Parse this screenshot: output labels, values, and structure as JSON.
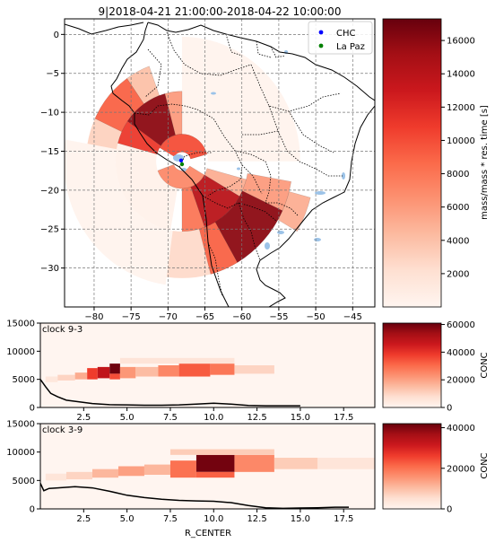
{
  "chart_data": [
    {
      "type": "heatmap",
      "title": "9|2018-04-21 21:00:00-2018-04-22 10:00:00",
      "xlim": [
        -84,
        -42
      ],
      "ylim": [
        -35,
        2
      ],
      "x_ticks": [
        -80,
        -75,
        -70,
        -65,
        -60,
        -55,
        -50,
        -45
      ],
      "y_ticks": [
        0,
        -5,
        -10,
        -15,
        -20,
        -25,
        -30
      ],
      "grid": true,
      "legend": {
        "placement": "top-right",
        "entries": [
          {
            "label": "CHC",
            "color": "#0000ff"
          },
          {
            "label": "La Paz",
            "color": "#008000"
          }
        ]
      },
      "stations": [
        {
          "name": "CHC",
          "lon": -68.1,
          "lat": -16.3
        },
        {
          "name": "La Paz",
          "lon": -68.1,
          "lat": -16.5
        }
      ],
      "colorbar": {
        "label": "mass/mass * res. time [s]",
        "min": 0,
        "max": 17300,
        "ticks": [
          2000,
          4000,
          6000,
          8000,
          10000,
          12000,
          14000,
          16000
        ]
      },
      "sectors": [
        {
          "r0": 1.2,
          "r1": 3.5,
          "a0": 15,
          "a1": 150,
          "v": 10000
        },
        {
          "r0": 1.2,
          "r1": 3.5,
          "a0": 200,
          "a1": 330,
          "v": 7000
        },
        {
          "r0": 3.5,
          "r1": 9,
          "a0": 105,
          "a1": 145,
          "v": 16000
        },
        {
          "r0": 3.5,
          "r1": 9,
          "a0": 145,
          "a1": 165,
          "v": 11000
        },
        {
          "r0": 3.5,
          "r1": 9,
          "a0": 90,
          "a1": 105,
          "v": 6000
        },
        {
          "r0": 9,
          "r1": 13,
          "a0": 125,
          "a1": 155,
          "v": 9000
        },
        {
          "r0": 9,
          "r1": 13,
          "a0": 110,
          "a1": 125,
          "v": 4000
        },
        {
          "r0": 9,
          "r1": 13,
          "a0": 155,
          "a1": 170,
          "v": 3000
        },
        {
          "r0": 3.5,
          "r1": 9,
          "a0": 290,
          "a1": 330,
          "v": 14000
        },
        {
          "r0": 3.5,
          "r1": 9,
          "a0": 270,
          "a1": 290,
          "v": 8000
        },
        {
          "r0": 3.5,
          "r1": 9,
          "a0": 330,
          "a1": 345,
          "v": 5000
        },
        {
          "r0": 9,
          "r1": 15,
          "a0": 300,
          "a1": 335,
          "v": 16000
        },
        {
          "r0": 9,
          "r1": 15,
          "a0": 285,
          "a1": 300,
          "v": 9000
        },
        {
          "r0": 9,
          "r1": 15,
          "a0": 335,
          "a1": 350,
          "v": 6000
        },
        {
          "r0": 15,
          "r1": 18,
          "a0": 330,
          "a1": 345,
          "v": 5000
        },
        {
          "r0": 9,
          "r1": 15,
          "a0": 262,
          "a1": 285,
          "v": 2500
        },
        {
          "r0": 3.5,
          "r1": 9,
          "a0": 165,
          "a1": 260,
          "v": 400
        },
        {
          "r0": 9,
          "r1": 16,
          "a0": 170,
          "a1": 262,
          "v": 250
        },
        {
          "r0": 3.5,
          "r1": 16,
          "a0": 0,
          "a1": 90,
          "v": 200
        }
      ]
    },
    {
      "type": "heatmap",
      "annotation": "clock 9-3",
      "xlim": [
        0,
        19.3
      ],
      "ylim": [
        0,
        15000
      ],
      "x_ticks": [
        2.5,
        5.0,
        7.5,
        10.0,
        12.5,
        15.0,
        17.5
      ],
      "y_ticks": [
        0,
        5000,
        10000,
        15000
      ],
      "colorbar": {
        "label": "CONC",
        "min": 0,
        "max": 61000,
        "ticks": [
          0,
          20000,
          40000,
          60000
        ]
      },
      "cells": [
        {
          "x0": 0.3,
          "x1": 1.0,
          "y0": 4500,
          "y1": 5500,
          "v": 5000
        },
        {
          "x0": 1.0,
          "x1": 2.0,
          "y0": 4800,
          "y1": 5800,
          "v": 10000
        },
        {
          "x0": 2.0,
          "x1": 2.7,
          "y0": 5000,
          "y1": 6200,
          "v": 18000
        },
        {
          "x0": 2.7,
          "x1": 3.3,
          "y0": 5000,
          "y1": 7000,
          "v": 38000
        },
        {
          "x0": 3.3,
          "x1": 4.0,
          "y0": 5200,
          "y1": 7200,
          "v": 48000
        },
        {
          "x0": 4.0,
          "x1": 4.6,
          "y0": 6000,
          "y1": 7800,
          "v": 60000
        },
        {
          "x0": 4.0,
          "x1": 4.6,
          "y0": 5000,
          "y1": 6000,
          "v": 35000
        },
        {
          "x0": 4.6,
          "x1": 5.5,
          "y0": 5200,
          "y1": 7200,
          "v": 22000
        },
        {
          "x0": 5.5,
          "x1": 6.8,
          "y0": 5500,
          "y1": 7200,
          "v": 15000
        },
        {
          "x0": 6.8,
          "x1": 8.0,
          "y0": 5500,
          "y1": 7500,
          "v": 25000
        },
        {
          "x0": 8.0,
          "x1": 9.8,
          "y0": 5500,
          "y1": 7800,
          "v": 33000
        },
        {
          "x0": 9.8,
          "x1": 11.2,
          "y0": 5800,
          "y1": 7800,
          "v": 28000
        },
        {
          "x0": 11.2,
          "x1": 13.5,
          "y0": 6000,
          "y1": 7500,
          "v": 10000
        },
        {
          "x0": 4.6,
          "x1": 11.2,
          "y0": 7800,
          "y1": 8800,
          "v": 6000
        }
      ],
      "line_x": [
        0.0,
        0.3,
        0.6,
        1.0,
        1.5,
        2.0,
        2.5,
        3.0,
        4.0,
        5.0,
        6.0,
        7.0,
        8.0,
        9.0,
        10.0,
        11.0,
        12.0,
        13.0,
        14.0,
        15.0
      ],
      "line_y": [
        5000,
        3700,
        2500,
        1900,
        1300,
        1100,
        900,
        700,
        500,
        450,
        400,
        400,
        450,
        600,
        750,
        600,
        350,
        300,
        300,
        300
      ]
    },
    {
      "type": "heatmap",
      "annotation": "clock 3-9",
      "xlabel": "R_CENTER",
      "xlim": [
        0,
        19.3
      ],
      "ylim": [
        0,
        15000
      ],
      "x_ticks": [
        2.5,
        5.0,
        7.5,
        10.0,
        12.5,
        15.0,
        17.5
      ],
      "y_ticks": [
        0,
        5000,
        10000,
        15000
      ],
      "colorbar": {
        "label": "CONC",
        "min": 0,
        "max": 42000,
        "ticks": [
          0,
          20000,
          40000
        ]
      },
      "cells": [
        {
          "x0": 0.3,
          "x1": 1.5,
          "y0": 5000,
          "y1": 6200,
          "v": 4000
        },
        {
          "x0": 1.5,
          "x1": 3.0,
          "y0": 5200,
          "y1": 6500,
          "v": 7000
        },
        {
          "x0": 3.0,
          "x1": 4.5,
          "y0": 5500,
          "y1": 7000,
          "v": 11000
        },
        {
          "x0": 4.5,
          "x1": 6.0,
          "y0": 5800,
          "y1": 7500,
          "v": 14000
        },
        {
          "x0": 6.0,
          "x1": 7.5,
          "y0": 6000,
          "y1": 7800,
          "v": 11000
        },
        {
          "x0": 7.5,
          "x1": 9.0,
          "y0": 5500,
          "y1": 8500,
          "v": 20000
        },
        {
          "x0": 9.0,
          "x1": 11.2,
          "y0": 6500,
          "y1": 9500,
          "v": 41000
        },
        {
          "x0": 9.0,
          "x1": 11.2,
          "y0": 5500,
          "y1": 6500,
          "v": 22000
        },
        {
          "x0": 11.2,
          "x1": 13.5,
          "y0": 6500,
          "y1": 9500,
          "v": 17000
        },
        {
          "x0": 13.5,
          "x1": 16.0,
          "y0": 7000,
          "y1": 9000,
          "v": 8000
        },
        {
          "x0": 16.0,
          "x1": 19.3,
          "y0": 7000,
          "y1": 9000,
          "v": 4000
        },
        {
          "x0": 7.5,
          "x1": 13.5,
          "y0": 9500,
          "y1": 10500,
          "v": 8000
        }
      ],
      "line_x": [
        0.0,
        0.2,
        0.5,
        1.0,
        2.0,
        3.0,
        4.0,
        5.0,
        6.0,
        7.0,
        8.0,
        9.0,
        10.0,
        11.0,
        12.0,
        13.0,
        14.0,
        15.0,
        16.0,
        17.0,
        17.8
      ],
      "line_y": [
        4500,
        3200,
        3600,
        3700,
        3900,
        3700,
        3100,
        2400,
        2000,
        1700,
        1500,
        1400,
        1350,
        1100,
        600,
        200,
        100,
        150,
        200,
        300,
        300
      ]
    }
  ]
}
